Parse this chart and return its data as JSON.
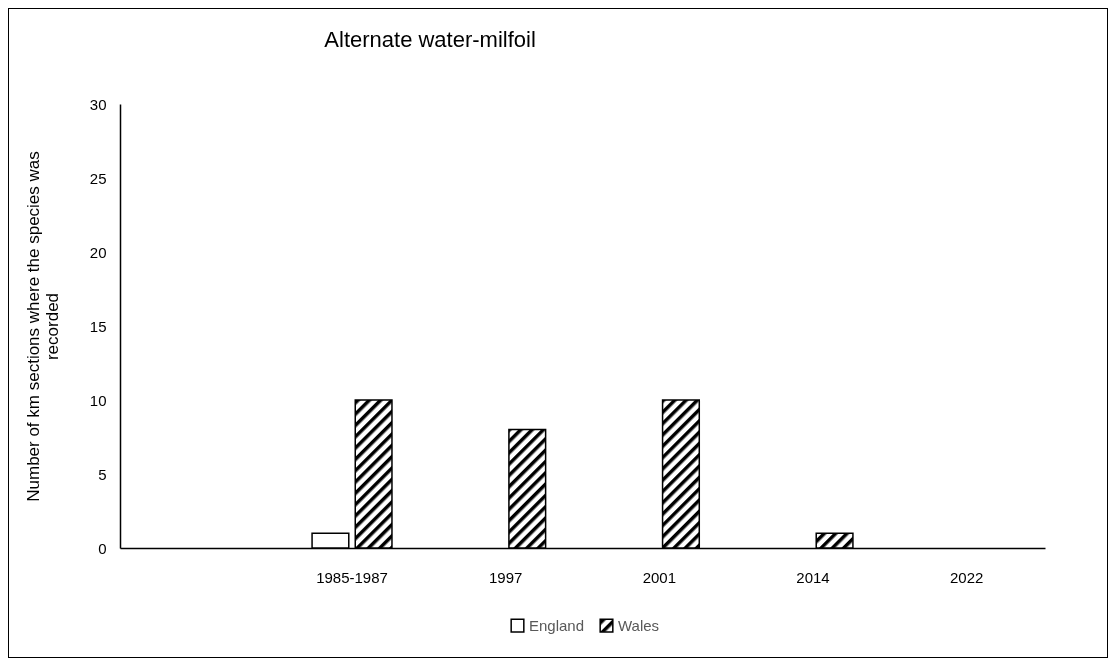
{
  "chart_data": {
    "type": "bar",
    "title": "Alternate water-milfoil",
    "ylabel": "Number of km sections where the species was recorded",
    "categories": [
      null,
      "1985-1987",
      "1997",
      "2001",
      "2014",
      "2022"
    ],
    "series": [
      {
        "name": "England",
        "color": "#ffffff",
        "values": [
          null,
          1,
          null,
          null,
          null,
          null
        ]
      },
      {
        "name": "Wales",
        "color": "#000000",
        "values": [
          null,
          10,
          8,
          10,
          1,
          null
        ]
      }
    ],
    "ylim": [
      0,
      30
    ],
    "yticks": [
      0,
      5,
      10,
      15,
      20,
      25,
      30
    ],
    "grid": false,
    "legend": "bottom"
  }
}
